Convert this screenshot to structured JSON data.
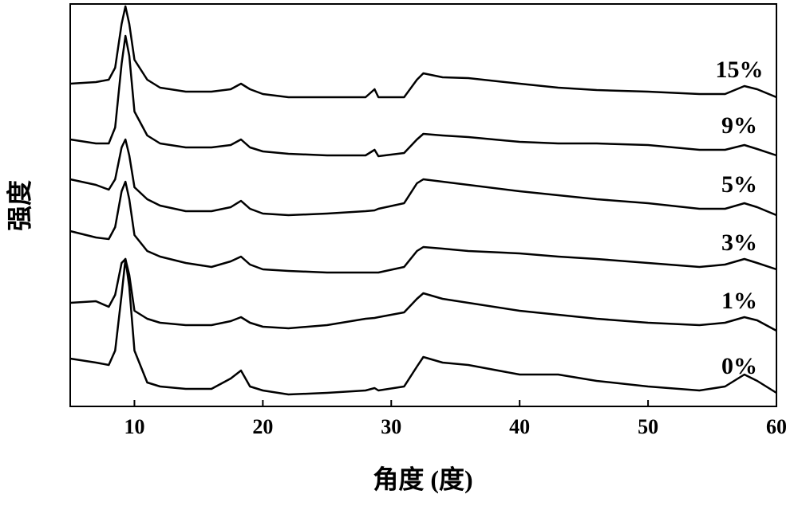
{
  "chart_data": {
    "type": "line",
    "x_label": "角度 (度)",
    "y_label": "强度",
    "x": [
      5,
      7,
      8,
      8.5,
      9,
      9.3,
      9.6,
      10,
      11,
      12,
      14,
      16,
      17.5,
      18.3,
      19,
      20,
      22,
      25,
      28,
      28.7,
      29,
      31,
      32,
      32.5,
      34,
      36,
      40,
      43,
      46,
      50,
      54,
      56,
      57.5,
      58.5,
      60
    ],
    "series": [
      {
        "name": "0%",
        "color": "#000000",
        "values": [
          60,
          55,
          52,
          70,
          140,
          185,
          150,
          70,
          30,
          25,
          22,
          22,
          35,
          45,
          25,
          20,
          15,
          17,
          20,
          23,
          20,
          25,
          50,
          62,
          55,
          52,
          40,
          40,
          32,
          25,
          20,
          25,
          40,
          32,
          17
        ]
      },
      {
        "name": "1%",
        "color": "#000000",
        "values": [
          130,
          132,
          125,
          140,
          180,
          185,
          165,
          120,
          110,
          105,
          102,
          102,
          107,
          112,
          105,
          100,
          98,
          102,
          110,
          111,
          112,
          118,
          135,
          142,
          135,
          130,
          120,
          115,
          110,
          105,
          102,
          105,
          112,
          108,
          95
        ]
      },
      {
        "name": "3%",
        "color": "#000000",
        "values": [
          220,
          212,
          210,
          225,
          270,
          282,
          260,
          215,
          195,
          188,
          180,
          175,
          182,
          188,
          178,
          172,
          170,
          168,
          168,
          168,
          168,
          175,
          195,
          200,
          198,
          195,
          192,
          188,
          185,
          180,
          175,
          178,
          185,
          180,
          172
        ]
      },
      {
        "name": "5%",
        "color": "#000000",
        "values": [
          285,
          278,
          272,
          285,
          325,
          335,
          315,
          275,
          260,
          252,
          245,
          245,
          250,
          258,
          248,
          242,
          240,
          242,
          245,
          246,
          248,
          255,
          280,
          285,
          282,
          278,
          270,
          265,
          260,
          255,
          248,
          248,
          255,
          250,
          240
        ]
      },
      {
        "name": "9%",
        "color": "#000000",
        "values": [
          335,
          330,
          330,
          350,
          430,
          465,
          440,
          370,
          340,
          330,
          325,
          325,
          328,
          335,
          325,
          320,
          317,
          315,
          315,
          322,
          314,
          318,
          335,
          342,
          340,
          338,
          332,
          330,
          330,
          328,
          322,
          322,
          328,
          323,
          315
        ]
      },
      {
        "name": "15%",
        "color": "#000000",
        "values": [
          405,
          407,
          410,
          425,
          480,
          502,
          480,
          435,
          410,
          400,
          395,
          395,
          398,
          405,
          398,
          392,
          388,
          388,
          388,
          398,
          388,
          388,
          410,
          418,
          413,
          412,
          405,
          400,
          397,
          395,
          392,
          392,
          402,
          398,
          388
        ]
      }
    ],
    "xlim": [
      5,
      60
    ],
    "xticks": [
      10,
      20,
      30,
      40,
      50,
      60
    ],
    "ylim": [
      0,
      505
    ]
  }
}
